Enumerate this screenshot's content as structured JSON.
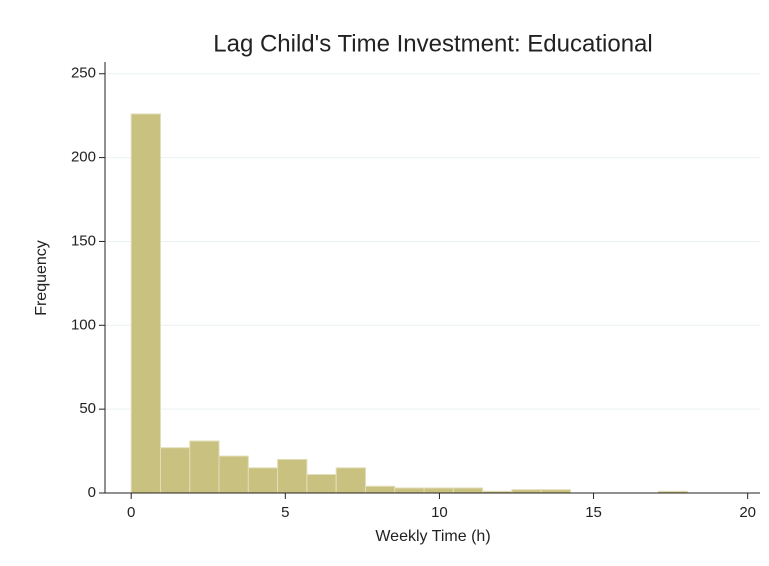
{
  "chart_data": {
    "type": "histogram",
    "title": "Lag Child's Time Investment: Educational",
    "x_label": "Weekly Time (h)",
    "y_label": "Frequency",
    "bins": [
      0,
      0.95,
      1.9,
      2.85,
      3.8,
      4.75,
      5.7,
      6.65,
      7.6,
      8.55,
      9.5,
      10.45,
      11.4,
      12.35,
      13.3,
      14.25,
      15.2,
      16.15,
      17.1,
      18.05,
      19,
      19.95
    ],
    "values": [
      226,
      27,
      31,
      22,
      15,
      20,
      11,
      15,
      4,
      3,
      3,
      3,
      1,
      2,
      2,
      0,
      0,
      0,
      1,
      0,
      0
    ],
    "color": "#c9c17f",
    "xlim": [
      -0.85,
      20.4
    ],
    "ylim": [
      0,
      257
    ],
    "xticks": [
      0,
      5,
      10,
      15,
      20
    ],
    "yticks": [
      0,
      50,
      100,
      150,
      200,
      250
    ],
    "grid": true
  }
}
